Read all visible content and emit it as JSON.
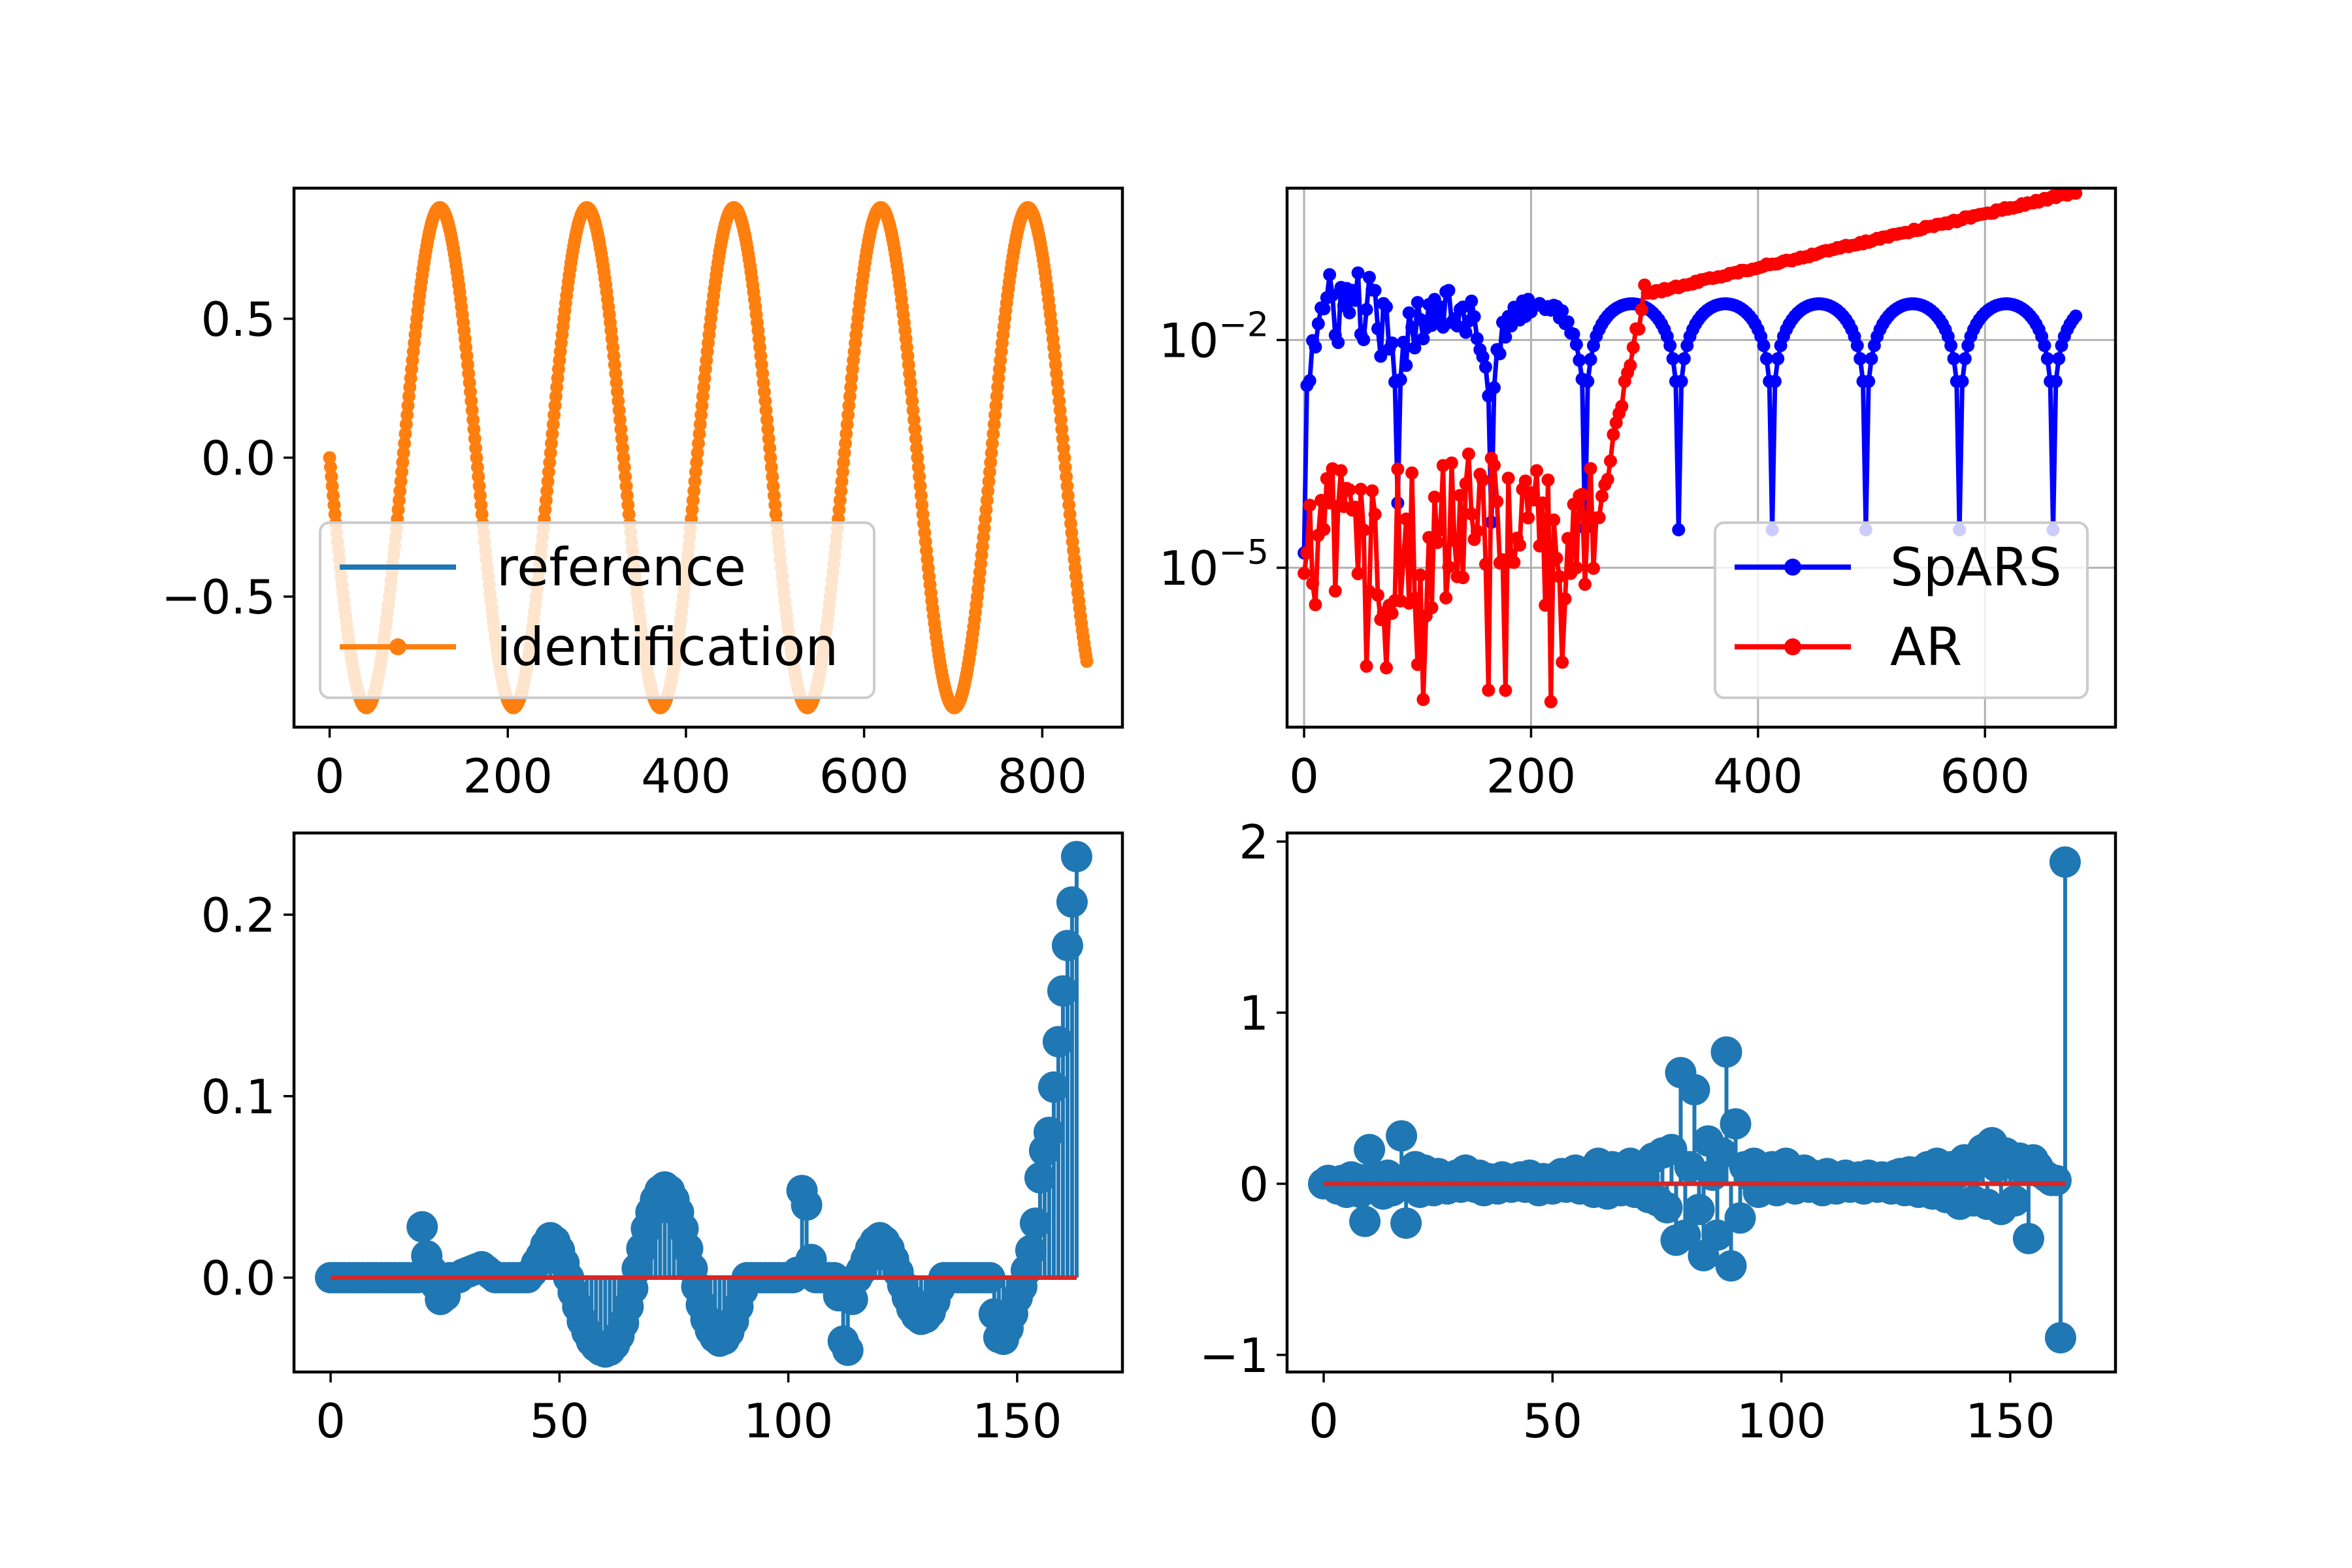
{
  "figure": {
    "background": "#ffffff"
  },
  "chart_data": [
    {
      "id": "signal",
      "type": "line",
      "scale": "linear",
      "xlim": [
        -40,
        890
      ],
      "ylim": [
        -0.97,
        0.97
      ],
      "xticks": [
        0,
        200,
        400,
        600,
        800
      ],
      "xtick_labels": [
        "0",
        "200",
        "400",
        "600",
        "800"
      ],
      "yticks": [
        -0.5,
        0.0,
        0.5
      ],
      "ytick_labels": [
        "−0.5",
        "0.0",
        "0.5"
      ],
      "grid": false,
      "series": [
        {
          "name": "reference",
          "color": "#1f77b4",
          "marker": "none",
          "generator": {
            "kind": "sine",
            "x_start": 0,
            "x_end": 850,
            "step": 1,
            "amplitude": 0.9,
            "period": 165,
            "phase_deg": 180
          }
        },
        {
          "name": "identification",
          "color": "#ff7f0e",
          "marker": "dot",
          "generator": {
            "kind": "sine",
            "x_start": 0,
            "x_end": 850,
            "step": 1,
            "amplitude": 0.9,
            "period": 165,
            "phase_deg": 180
          }
        }
      ],
      "legend": {
        "location": "lower-left",
        "entries": [
          "reference",
          "identification"
        ]
      }
    },
    {
      "id": "error",
      "type": "line",
      "scale": "log",
      "xlim": [
        -15,
        715
      ],
      "ylim_exp": [
        -7.1,
        0.0
      ],
      "xticks": [
        0,
        200,
        400,
        600
      ],
      "xtick_labels": [
        "0",
        "200",
        "400",
        "600"
      ],
      "yticks_exp": [
        -5,
        -2
      ],
      "ytick_labels": [
        {
          "base": "10",
          "exp": "−5"
        },
        {
          "base": "10",
          "exp": "−2"
        }
      ],
      "grid": true,
      "series": [
        {
          "name": "SpARS",
          "color": "#0000ff",
          "marker": "dot",
          "generator": {
            "kind": "log-rectified-sine",
            "x_start": 0,
            "x_end": 680,
            "step": 2.5,
            "amplitude": 0.03,
            "period": 165,
            "phase_deg": 0,
            "floor": 3.16e-05,
            "noise_to_x": 260,
            "noise_exp": 0.6
          }
        },
        {
          "name": "AR",
          "color": "#ff0000",
          "marker": "dot",
          "generator": {
            "kind": "noisy-then-growth",
            "x_start": 0,
            "x_end": 680,
            "step": 2.5,
            "noise_until": 255,
            "noise_center_exp": -4.6,
            "noise_spread_exp": 1.1,
            "spike_exp": -6.8,
            "rise_end_x": 300,
            "rise_end_exp": -1.4,
            "end_exp": -0.05
          }
        }
      ],
      "legend": {
        "location": "lower-right",
        "entries": [
          "SpARS",
          "AR"
        ]
      }
    },
    {
      "id": "stem_a",
      "type": "stem",
      "scale": "linear",
      "xlim": [
        -8,
        173
      ],
      "ylim": [
        -0.052,
        0.245
      ],
      "xticks": [
        0,
        50,
        100,
        150
      ],
      "xtick_labels": [
        "0",
        "50",
        "100",
        "150"
      ],
      "yticks": [
        0.0,
        0.1,
        0.2
      ],
      "ytick_labels": [
        "0.0",
        "0.1",
        "0.2"
      ],
      "grid": false,
      "stem_color": "#1f77b4",
      "baseline_color": "#d62728",
      "values": [
        0,
        0,
        0,
        0,
        0,
        0,
        0,
        0,
        0,
        0,
        0,
        0,
        0,
        0,
        0,
        0,
        0,
        0,
        0,
        0,
        0.028,
        0.012,
        0.004,
        -0.004,
        -0.012,
        -0.01,
        0,
        0,
        0,
        0.002,
        0.003,
        0.004,
        0.005,
        0.006,
        0.004,
        0.002,
        0,
        0,
        0,
        0,
        0,
        0,
        0,
        0,
        0.003,
        0.008,
        0.012,
        0.018,
        0.022,
        0.02,
        0.015,
        0.008,
        0,
        -0.008,
        -0.016,
        -0.024,
        -0.03,
        -0.035,
        -0.038,
        -0.04,
        -0.041,
        -0.04,
        -0.037,
        -0.032,
        -0.025,
        -0.016,
        -0.006,
        0.005,
        0.016,
        0.027,
        0.036,
        0.043,
        0.048,
        0.05,
        0.048,
        0.043,
        0.036,
        0.027,
        0.016,
        0.005,
        -0.005,
        -0.015,
        -0.023,
        -0.029,
        -0.033,
        -0.035,
        -0.034,
        -0.03,
        -0.024,
        -0.016,
        -0.007,
        0,
        0,
        0,
        0,
        0,
        0,
        0,
        0,
        0,
        0,
        0,
        0.003,
        0.048,
        0.04,
        0.01,
        0,
        0,
        0,
        0,
        0,
        -0.01,
        -0.035,
        -0.04,
        -0.012,
        0,
        0.004,
        0.01,
        0.016,
        0.02,
        0.022,
        0.02,
        0.016,
        0.01,
        0.003,
        -0.004,
        -0.011,
        -0.017,
        -0.021,
        -0.023,
        -0.022,
        -0.019,
        -0.013,
        -0.006,
        0,
        0,
        0,
        0,
        0,
        0,
        0,
        0,
        0,
        0,
        0,
        -0.02,
        -0.033,
        -0.034,
        -0.028,
        -0.02,
        -0.011,
        -0.005,
        0.004,
        0.015,
        0.03,
        0.055,
        0.07,
        0.08,
        0.105,
        0.13,
        0.158,
        0.183,
        0.207,
        0.232
      ]
    },
    {
      "id": "stem_b",
      "type": "stem",
      "scale": "linear",
      "xlim": [
        -8,
        173
      ],
      "ylim": [
        -1.1,
        2.05
      ],
      "xticks": [
        0,
        50,
        100,
        150
      ],
      "xtick_labels": [
        "0",
        "50",
        "100",
        "150"
      ],
      "yticks": [
        -1,
        0,
        1,
        2
      ],
      "ytick_labels": [
        "−1",
        "0",
        "1",
        "2"
      ],
      "grid": false,
      "stem_color": "#1f77b4",
      "baseline_color": "#d62728",
      "values": [
        0,
        0.02,
        0,
        -0.03,
        0.02,
        -0.05,
        0.04,
        0.03,
        -0.05,
        -0.22,
        0.2,
        0.05,
        0.02,
        -0.06,
        0.05,
        -0.04,
        0.02,
        0.28,
        -0.23,
        0.04,
        0.1,
        -0.05,
        0.08,
        0.02,
        -0.04,
        0.06,
        0.02,
        -0.03,
        0.04,
        0.05,
        -0.02,
        0.08,
        0.03,
        -0.02,
        0.05,
        -0.04,
        0.03,
        0.02,
        -0.03,
        0.04,
        0.02,
        -0.02,
        0.03,
        0.04,
        -0.02,
        0.05,
        0.03,
        -0.04,
        0.03,
        0.02,
        -0.03,
        0.04,
        0.06,
        -0.02,
        0.05,
        0.08,
        -0.03,
        0.06,
        0.02,
        -0.05,
        0.12,
        0.03,
        -0.06,
        0.1,
        0.05,
        -0.04,
        0.07,
        0.12,
        -0.05,
        0.06,
        0.04,
        -0.08,
        0.15,
        -0.1,
        0.18,
        -0.14,
        0.2,
        -0.33,
        0.65,
        -0.3,
        0.1,
        0.55,
        -0.15,
        -0.42,
        0.25,
        0.05,
        -0.3,
        0.18,
        0.77,
        -0.48,
        0.35,
        -0.2,
        0.1,
        0.05,
        0.12,
        -0.05,
        0.08,
        0.02,
        0.1,
        -0.04,
        0.05,
        0.12,
        0.03,
        -0.03,
        0.06,
        0.08,
        -0.02,
        0.05,
        0.03,
        -0.04,
        0.06,
        0.02,
        -0.03,
        0.04,
        0.05,
        -0.02,
        0.03,
        0.04,
        -0.03,
        0.05,
        0.02,
        -0.02,
        0.04,
        0.03,
        -0.03,
        0.05,
        0.06,
        -0.04,
        0.07,
        0.05,
        -0.05,
        0.08,
        0.1,
        -0.06,
        0.12,
        0.06,
        -0.08,
        0.1,
        0.05,
        -0.12,
        0.14,
        0.08,
        -0.1,
        0.16,
        0.2,
        -0.12,
        0.24,
        0.1,
        -0.15,
        0.18,
        0.12,
        -0.1,
        0.15,
        0.08,
        -0.32,
        0.14,
        0.1,
        0.06,
        0.04,
        0.02,
        0.02,
        -0.9,
        1.88
      ]
    }
  ]
}
